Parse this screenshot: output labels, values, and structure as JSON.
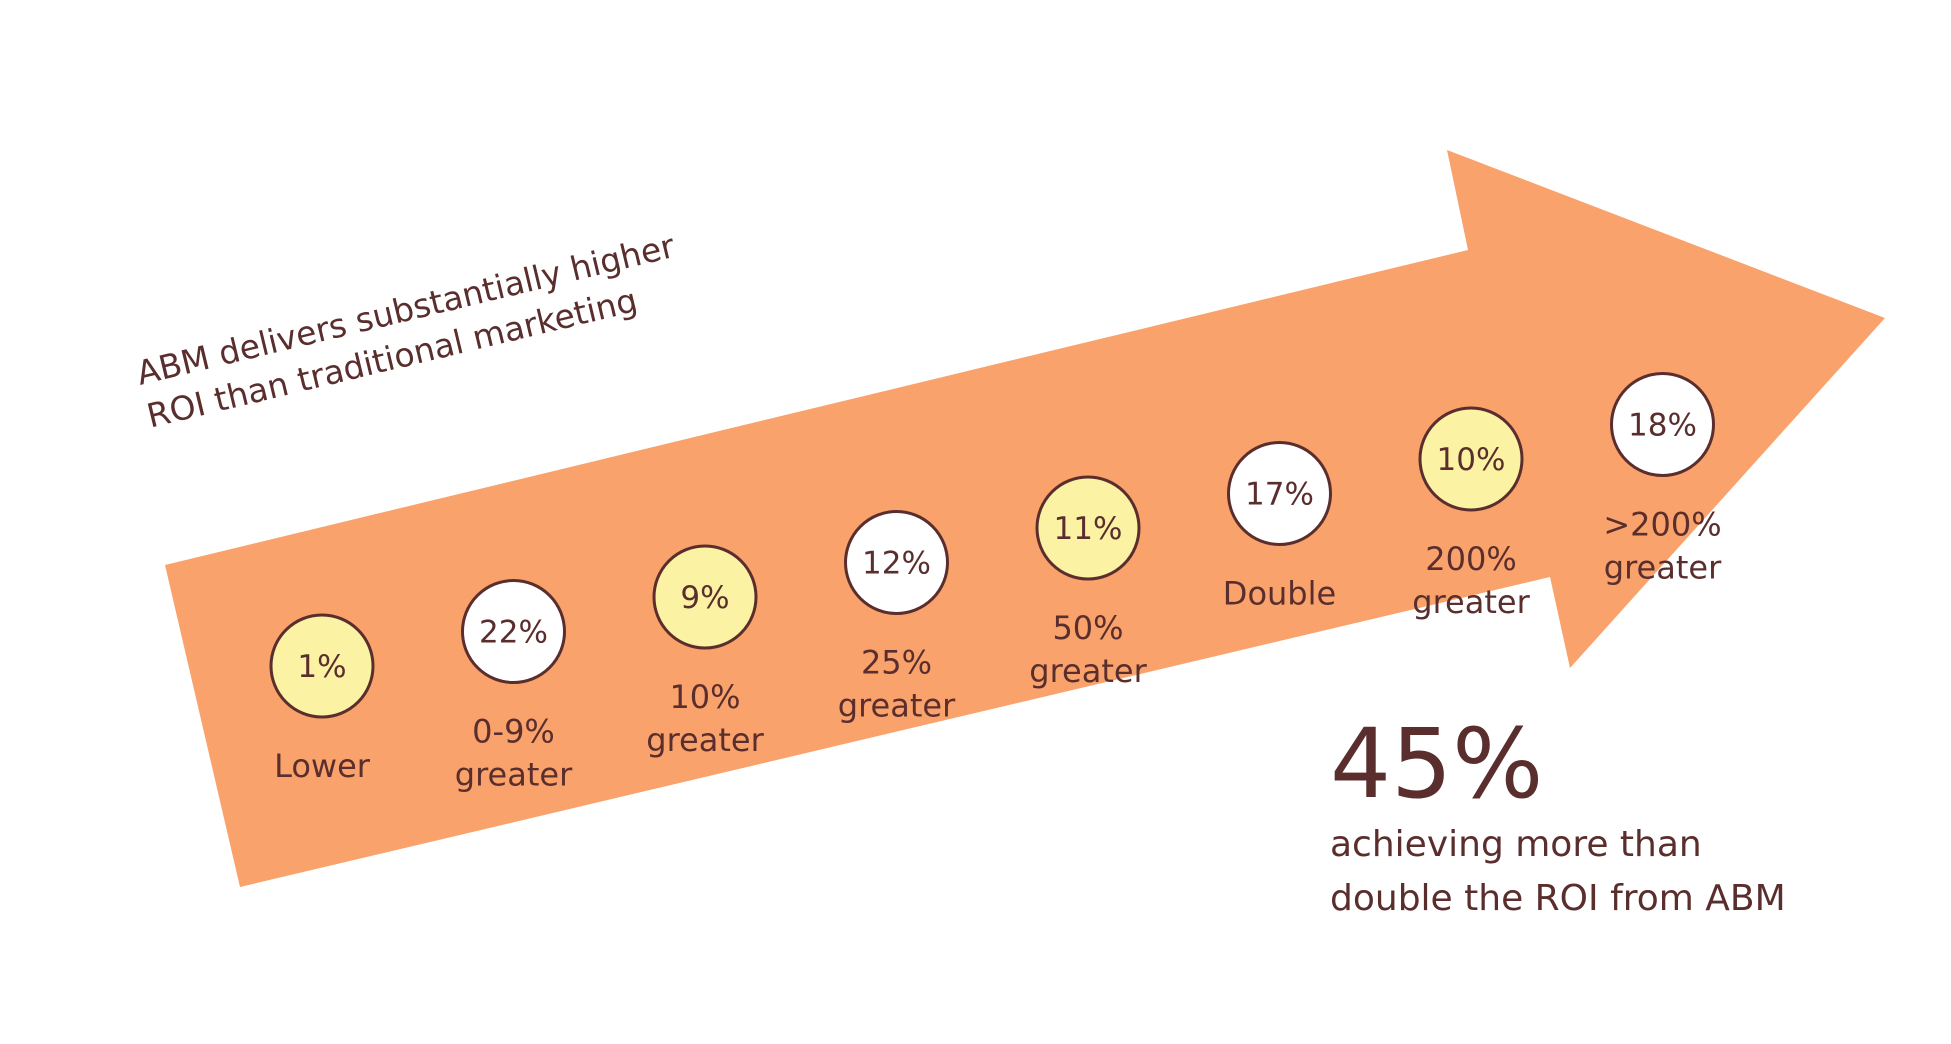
{
  "chart_data": {
    "type": "bar",
    "title": "ABM delivers substantially higher ROI than traditional marketing",
    "title_lines": [
      "ABM delivers substantially higher",
      "ROI than traditional marketing"
    ],
    "categories": [
      "Lower",
      "0-9% greater",
      "10% greater",
      "25% greater",
      "50% greater",
      "Double",
      "200% greater",
      ">200% greater"
    ],
    "category_lines": [
      [
        "Lower"
      ],
      [
        "0-9%",
        "greater"
      ],
      [
        "10%",
        "greater"
      ],
      [
        "25%",
        "greater"
      ],
      [
        "50%",
        "greater"
      ],
      [
        "Double"
      ],
      [
        "200%",
        "greater"
      ],
      [
        ">200%",
        "greater"
      ]
    ],
    "values": [
      1,
      22,
      9,
      12,
      11,
      17,
      10,
      18
    ],
    "value_labels": [
      "1%",
      "22%",
      "9%",
      "12%",
      "11%",
      "17%",
      "10%",
      "18%"
    ],
    "value_unit": "%",
    "highlighted": [
      true,
      false,
      true,
      false,
      true,
      false,
      true,
      false
    ],
    "callout": {
      "value": "45%",
      "lines": [
        "achieving more than",
        "double the ROI from ABM"
      ]
    },
    "colors": {
      "arrow": "#f9a26c",
      "highlight_fill": "#fbf3a3",
      "plain_fill": "#ffffff",
      "text": "#5b2e2e",
      "circle_stroke": "#5b2e2e"
    },
    "grid": false,
    "legend": "none"
  }
}
